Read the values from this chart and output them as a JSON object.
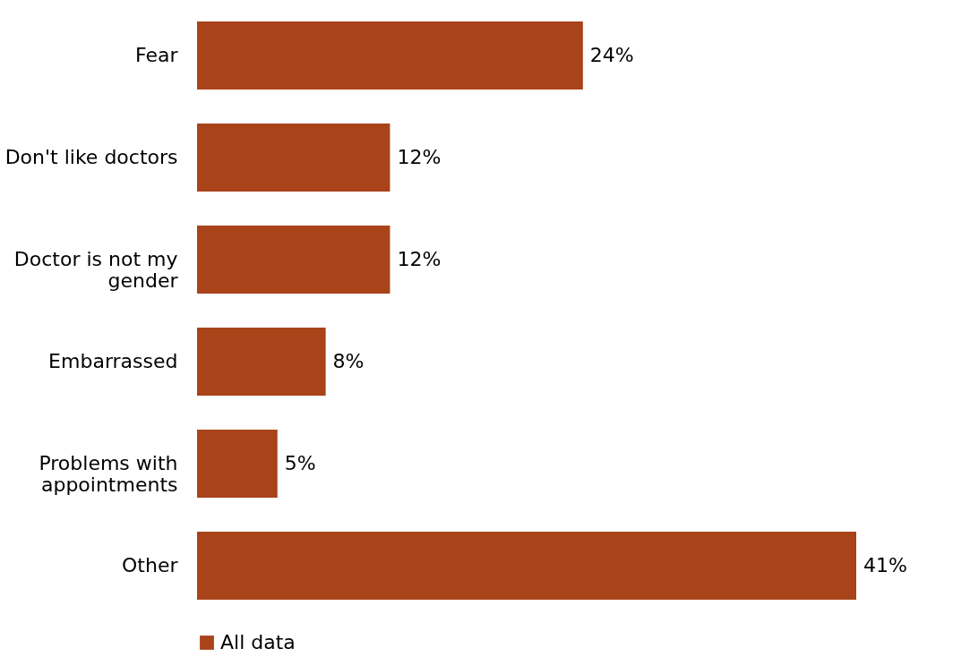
{
  "chart_data": {
    "type": "bar",
    "orientation": "horizontal",
    "categories": [
      "Fear",
      "Don't like doctors",
      "Doctor is not my gender",
      "Embarrassed",
      "Problems with appointments",
      "Other"
    ],
    "series": [
      {
        "name": "All data",
        "color": "#a8431a",
        "values": [
          24,
          12,
          12,
          8,
          5,
          41
        ],
        "value_labels": [
          "24%",
          "12%",
          "12%",
          "8%",
          "5%",
          "41%"
        ]
      }
    ],
    "legend": "bottom",
    "grid": false
  }
}
